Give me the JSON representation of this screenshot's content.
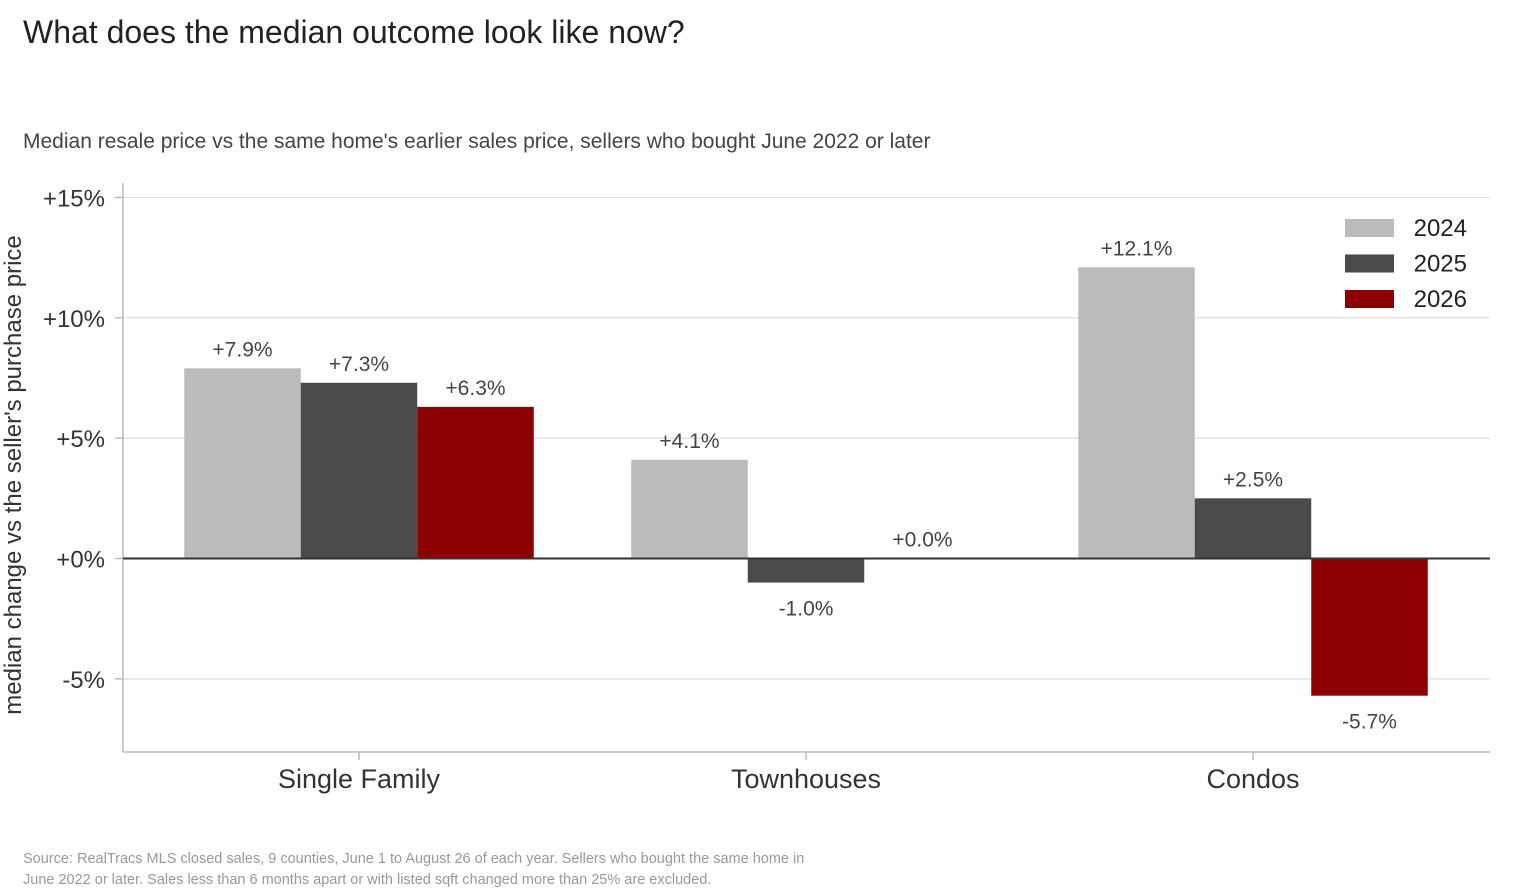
{
  "title": "What does the median outcome look like now?",
  "subtitle": "Median resale price vs the same home's earlier sales price, sellers who bought June 2022 or later",
  "source_line1": "Source: RealTracs MLS closed sales, 9 counties, June 1 to August 26 of each year. Sellers who bought the same home in",
  "source_line2": "June 2022 or later. Sales less than 6 months apart or with listed sqft changed more than 25% are excluded.",
  "chart_data": {
    "type": "bar",
    "ylabel": "median change vs the seller's purchase price",
    "categories": [
      "Single Family",
      "Townhouses",
      "Condos"
    ],
    "yticks": [
      15,
      10,
      5,
      0,
      -5
    ],
    "ytick_labels": [
      "+15%",
      "+10%",
      "+5%",
      "+0%",
      "-5%"
    ],
    "ylim": [
      -8,
      15
    ],
    "series": [
      {
        "name": "2024",
        "color": "#bbbbbb",
        "values": [
          7.9,
          4.1,
          12.1
        ],
        "labels": [
          "+7.9%",
          "+4.1%",
          "+12.1%"
        ],
        "label_color": "#444444"
      },
      {
        "name": "2025",
        "color": "#4a4a4a",
        "values": [
          7.3,
          -1.0,
          2.5
        ],
        "labels": [
          "+7.3%",
          "-1.0%",
          "+2.5%"
        ],
        "label_color": "#444444"
      },
      {
        "name": "2026",
        "color": "#8b0000",
        "values": [
          6.3,
          0.0,
          -5.7
        ],
        "labels": [
          "+6.3%",
          "+0.0%",
          "-5.7%"
        ],
        "label_color": "#222222",
        "negative_label_color": "#8b0000"
      }
    ],
    "legend_position": "top-right",
    "grid": true
  }
}
